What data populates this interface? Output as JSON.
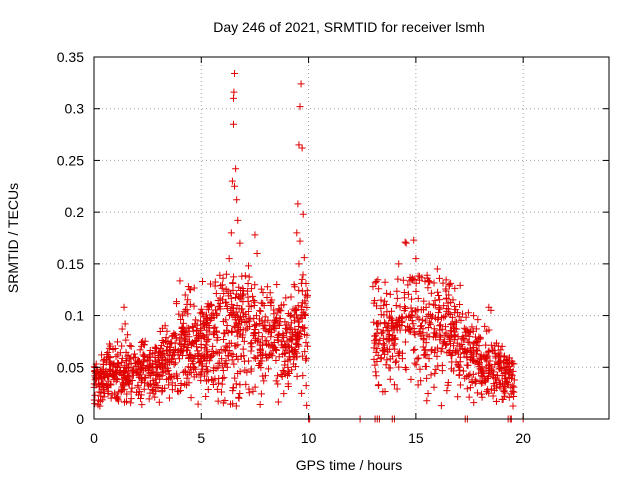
{
  "chart_data": {
    "type": "scatter",
    "title": "Day 246 of 2021, SRMTID for receiver lsmh",
    "xlabel": "GPS time / hours",
    "ylabel": "SRMTID / TECUs",
    "xlim": [
      0,
      24
    ],
    "ylim": [
      0,
      0.35
    ],
    "xticks": [
      0,
      5,
      10,
      15,
      20
    ],
    "xtick_labels": [
      "0",
      "5",
      "10",
      "15",
      "20"
    ],
    "yticks": [
      0,
      0.05,
      0.1,
      0.15,
      0.2,
      0.25,
      0.3,
      0.35
    ],
    "ytick_labels": [
      "0",
      "0.05",
      "0.1",
      "0.15",
      "0.2",
      "0.25",
      "0.3",
      "0.35"
    ],
    "grid": true,
    "marker": "plus",
    "color": "#e00000",
    "series": [
      {
        "name": "SRMTID",
        "profile": [
          [
            0.0,
            0.038,
            0.012
          ],
          [
            1.0,
            0.042,
            0.014
          ],
          [
            2.0,
            0.045,
            0.014
          ],
          [
            3.0,
            0.05,
            0.015
          ],
          [
            4.0,
            0.068,
            0.022
          ],
          [
            5.0,
            0.072,
            0.024
          ],
          [
            6.0,
            0.085,
            0.035
          ],
          [
            7.0,
            0.085,
            0.03
          ],
          [
            8.0,
            0.078,
            0.024
          ],
          [
            9.0,
            0.072,
            0.022
          ],
          [
            9.9,
            0.09,
            0.03
          ]
        ],
        "profile_b": [
          [
            13.0,
            0.085,
            0.025
          ],
          [
            14.0,
            0.08,
            0.025
          ],
          [
            14.8,
            0.105,
            0.03
          ],
          [
            15.5,
            0.09,
            0.028
          ],
          [
            16.5,
            0.085,
            0.026
          ],
          [
            17.5,
            0.06,
            0.02
          ],
          [
            18.5,
            0.05,
            0.016
          ],
          [
            19.5,
            0.04,
            0.012
          ]
        ],
        "peaks": [
          {
            "x": 0.35,
            "y": 0.062
          },
          {
            "x": 1.4,
            "y": 0.108
          },
          {
            "x": 1.45,
            "y": 0.092
          },
          {
            "x": 4.4,
            "y": 0.128
          },
          {
            "x": 4.5,
            "y": 0.125
          },
          {
            "x": 5.4,
            "y": 0.098
          },
          {
            "x": 6.3,
            "y": 0.155
          },
          {
            "x": 6.4,
            "y": 0.18
          },
          {
            "x": 6.45,
            "y": 0.23
          },
          {
            "x": 6.5,
            "y": 0.285
          },
          {
            "x": 6.52,
            "y": 0.316
          },
          {
            "x": 6.55,
            "y": 0.334
          },
          {
            "x": 6.6,
            "y": 0.242
          },
          {
            "x": 6.65,
            "y": 0.212
          },
          {
            "x": 6.7,
            "y": 0.192
          },
          {
            "x": 6.8,
            "y": 0.17
          },
          {
            "x": 6.55,
            "y": 0.225
          },
          {
            "x": 6.5,
            "y": 0.31
          },
          {
            "x": 7.5,
            "y": 0.178
          },
          {
            "x": 7.6,
            "y": 0.16
          },
          {
            "x": 7.2,
            "y": 0.148
          },
          {
            "x": 9.45,
            "y": 0.18
          },
          {
            "x": 9.5,
            "y": 0.208
          },
          {
            "x": 9.55,
            "y": 0.265
          },
          {
            "x": 9.6,
            "y": 0.302
          },
          {
            "x": 9.65,
            "y": 0.324
          },
          {
            "x": 9.7,
            "y": 0.262
          },
          {
            "x": 9.75,
            "y": 0.198
          },
          {
            "x": 9.8,
            "y": 0.156
          },
          {
            "x": 9.85,
            "y": 0.12
          },
          {
            "x": 9.6,
            "y": 0.172
          },
          {
            "x": 9.55,
            "y": 0.15
          },
          {
            "x": 9.7,
            "y": 0.135
          },
          {
            "x": 13.0,
            "y": 0.128
          },
          {
            "x": 13.05,
            "y": 0.112
          },
          {
            "x": 14.2,
            "y": 0.15
          },
          {
            "x": 14.5,
            "y": 0.171
          },
          {
            "x": 14.55,
            "y": 0.17
          },
          {
            "x": 14.9,
            "y": 0.173
          },
          {
            "x": 15.0,
            "y": 0.155
          },
          {
            "x": 16.0,
            "y": 0.145
          },
          {
            "x": 16.1,
            "y": 0.136
          },
          {
            "x": 16.5,
            "y": 0.112
          },
          {
            "x": 18.4,
            "y": 0.108
          },
          {
            "x": 18.5,
            "y": 0.105
          },
          {
            "x": 18.3,
            "y": 0.085
          }
        ],
        "zeros": [
          10.0,
          10.05,
          12.4,
          13.1,
          13.2,
          13.3,
          13.9,
          14.0,
          17.3,
          17.4,
          19.3,
          19.4,
          19.45,
          20.0
        ]
      }
    ]
  }
}
